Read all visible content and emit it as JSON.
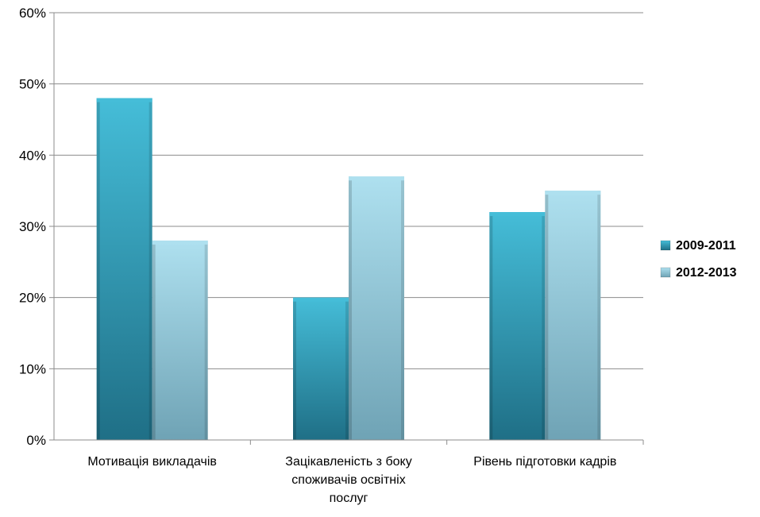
{
  "chart_data": {
    "type": "bar",
    "title": "",
    "xlabel": "",
    "ylabel": "",
    "categories": [
      [
        "Мотивація викладачів"
      ],
      [
        "Зацікавленість з боку",
        "споживачів освітніх",
        "послуг"
      ],
      [
        "Рівень підготовки кадрів"
      ]
    ],
    "series": [
      {
        "name": "2009-2011",
        "values": [
          48,
          20,
          32
        ]
      },
      {
        "name": "2012-2013",
        "values": [
          28,
          37,
          35
        ]
      }
    ],
    "ylim": [
      0,
      60
    ],
    "yticks": [
      0,
      10,
      20,
      30,
      40,
      50,
      60
    ],
    "ytick_labels": [
      "0%",
      "10%",
      "20%",
      "30%",
      "40%",
      "50%",
      "60%"
    ],
    "grid": true,
    "legend_position": "right",
    "colors": {
      "series_1": "#2a9fc0",
      "series_1_dark": "#1f6f86",
      "series_1_light": "#45bdd8",
      "series_2": "#93cde3",
      "series_2_dark": "#6fa3b5",
      "series_2_light": "#aee0ef",
      "gridline": "#8c8c8c",
      "axis": "#8c8c8c"
    }
  }
}
